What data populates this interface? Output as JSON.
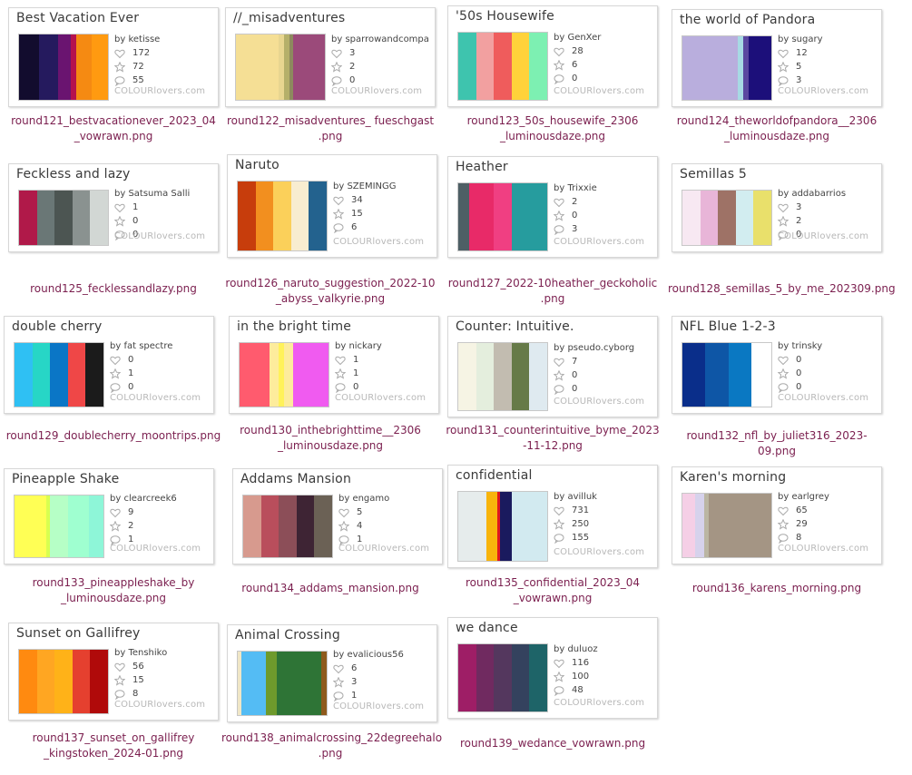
{
  "brand": "COLOURlovers.com",
  "palettes": [
    {
      "title": "Best Vacation Ever",
      "by": "by ketisse",
      "hearts": "172",
      "stars": "72",
      "comments": "55",
      "colors": [
        "#120c2e",
        "#251a5e",
        "#6a1470",
        "#b5124e",
        "#f58a12",
        "#ff9a10"
      ],
      "widths": [
        22,
        22,
        14,
        6,
        18,
        18
      ],
      "filename": [
        "round121_bestvacationever_2023_04",
        "_vowrawn.png"
      ]
    },
    {
      "title": "//_misadventures",
      "by": "by sparrowandcompa",
      "hearts": "3",
      "stars": "2",
      "comments": "0",
      "colors": [
        "#f5df95",
        "#e8d690",
        "#b5b06a",
        "#8d8a5e",
        "#9b4a7a"
      ],
      "widths": [
        48,
        6,
        6,
        4,
        36
      ],
      "filename": [
        "round122_misadventures_ fueschgast",
        ".png"
      ]
    },
    {
      "title": "'50s Housewife",
      "by": "by GenXer",
      "hearts": "28",
      "stars": "6",
      "comments": "0",
      "colors": [
        "#3ec4ae",
        "#f2a0a0",
        "#ef5c5c",
        "#ffd23a",
        "#7df0b2"
      ],
      "widths": [
        20,
        20,
        20,
        20,
        20
      ],
      "filename": [
        "round123_50s_housewife_2306",
        "_luminousdaze.png"
      ]
    },
    {
      "title": "the world of Pandora",
      "by": "by sugary",
      "hearts": "12",
      "stars": "5",
      "comments": "3",
      "colors": [
        "#b9aedd",
        "#a7dae4",
        "#5a48a0",
        "#1c0f7a"
      ],
      "widths": [
        62,
        6,
        6,
        26
      ],
      "filename": [
        "round124_theworldofpandora__2306",
        "_luminousdaze.png"
      ]
    },
    {
      "title": "Feckless and lazy",
      "by": "by Satsuma Salli",
      "hearts": "1",
      "stars": "0",
      "comments": "0",
      "colors": [
        "#b01949",
        "#6a7776",
        "#4c5552",
        "#8a9290",
        "#d2d7d4"
      ],
      "widths": [
        20,
        20,
        20,
        20,
        20
      ],
      "filename": [
        "round125_fecklessandlazy.png"
      ]
    },
    {
      "title": "Naruto",
      "by": "by SZEMINGG",
      "hearts": "34",
      "stars": "15",
      "comments": "6",
      "colors": [
        "#c73d0c",
        "#f28f1f",
        "#fbd05a",
        "#f8edd0",
        "#23628e"
      ],
      "widths": [
        20,
        20,
        20,
        20,
        20
      ],
      "filename": [
        "round126_naruto_suggestion_2022-10",
        "_abyss_valkyrie.png"
      ]
    },
    {
      "title": "Heather",
      "by": "by Trixxie",
      "hearts": "2",
      "stars": "0",
      "comments": "3",
      "colors": [
        "#4e5f65",
        "#e82a68",
        "#f03f82",
        "#269c9e"
      ],
      "widths": [
        12,
        28,
        20,
        40
      ],
      "filename": [
        "round127_2022-10heather_geckoholic",
        ".png"
      ]
    },
    {
      "title": "Semillas 5",
      "by": "by addabarrios",
      "hearts": "3",
      "stars": "2",
      "comments": "0",
      "colors": [
        "#f7e8f2",
        "#e8b5d8",
        "#9e7266",
        "#d2edf0",
        "#e9e06b"
      ],
      "widths": [
        20,
        20,
        20,
        20,
        20
      ],
      "filename": [
        "round128_semillas_5_by_me_202309.png"
      ]
    },
    {
      "title": "double cherry",
      "by": "by fat spectre",
      "hearts": "0",
      "stars": "1",
      "comments": "0",
      "colors": [
        "#2fc0f3",
        "#27d6c6",
        "#0a76c6",
        "#ef4747",
        "#1b1b1b"
      ],
      "widths": [
        20,
        20,
        20,
        20,
        20
      ],
      "filename": [
        "round129_doublecherry_moontrips.png"
      ]
    },
    {
      "title": "in the bright time",
      "by": "by nickary",
      "hearts": "1",
      "stars": "1",
      "comments": "0",
      "colors": [
        "#ff5b6e",
        "#fdec9c",
        "#fff25a",
        "#fdec9c",
        "#f05bf0"
      ],
      "widths": [
        34,
        10,
        6,
        10,
        40
      ],
      "filename": [
        "round130_inthebrighttime__2306",
        "_luminousdaze.png"
      ]
    },
    {
      "title": "Counter: Intuitive.",
      "by": "by pseudo.cyborg",
      "hearts": "7",
      "stars": "0",
      "comments": "0",
      "colors": [
        "#f6f4e4",
        "#e4eedd",
        "#c2bcb0",
        "#667a48",
        "#dfeaf0"
      ],
      "widths": [
        20,
        20,
        20,
        20,
        20
      ],
      "filename": [
        "round131_counterintuitive_byme_2023",
        "-11-12.png"
      ]
    },
    {
      "title": "NFL Blue 1-2-3",
      "by": "by trinsky",
      "hearts": "0",
      "stars": "0",
      "comments": "0",
      "colors": [
        "#0a2e8a",
        "#0e56a6",
        "#0a78c2",
        "#ffffff"
      ],
      "widths": [
        26,
        26,
        26,
        22
      ],
      "filename": [
        "round132_nfl_by_juliet316_2023-09.png"
      ]
    },
    {
      "title": "Pineapple Shake",
      "by": "by clearcreek6",
      "hearts": "9",
      "stars": "2",
      "comments": "1",
      "colors": [
        "#ffff55",
        "#d8ff4f",
        "#b6ffc6",
        "#9fffd0",
        "#8ef6d8"
      ],
      "widths": [
        36,
        4,
        20,
        24,
        16
      ],
      "filename": [
        "round133_pineappleshake_by",
        "_luminousdaze.png"
      ]
    },
    {
      "title": "Addams Mansion",
      "by": "by engamo",
      "hearts": "5",
      "stars": "4",
      "comments": "1",
      "colors": [
        "#d79a8e",
        "#b94e5c",
        "#8c4e58",
        "#3e2434",
        "#6b6155"
      ],
      "widths": [
        20,
        20,
        20,
        20,
        20
      ],
      "filename": [
        "round134_addams_mansion.png"
      ]
    },
    {
      "title": "confidential",
      "by": "by avilluk",
      "hearts": "731",
      "stars": "250",
      "comments": "155",
      "colors": [
        "#e6ecec",
        "#f8b40c",
        "#e0151f",
        "#1a1a5e",
        "#d2eaf0"
      ],
      "widths": [
        32,
        12,
        3,
        13,
        40
      ],
      "filename": [
        "round135_confidential_2023_04",
        "_vowrawn.png"
      ]
    },
    {
      "title": "Karen's morning",
      "by": "by earlgrey",
      "hearts": "65",
      "stars": "29",
      "comments": "8",
      "colors": [
        "#f5cfe6",
        "#d6d2ec",
        "#bbb6a3",
        "#a49584"
      ],
      "widths": [
        14,
        10,
        6,
        70
      ],
      "filename": [
        "round136_karens_morning.png"
      ]
    },
    {
      "title": "Sunset on Gallifrey",
      "by": "by Tenshiko",
      "hearts": "56",
      "stars": "15",
      "comments": "8",
      "colors": [
        "#ff8a10",
        "#ffa622",
        "#ffb218",
        "#e5402f",
        "#b00a0a"
      ],
      "widths": [
        20,
        20,
        20,
        20,
        20
      ],
      "filename": [
        "round137_sunset_on_gallifrey",
        "_kingstoken_2024-01.png"
      ]
    },
    {
      "title": "Animal Crossing",
      "by": "by evalicious56",
      "hearts": "6",
      "stars": "3",
      "comments": "1",
      "colors": [
        "#f0e6c6",
        "#54bcf4",
        "#6e9a2c",
        "#2e7436",
        "#8e5a1c"
      ],
      "widths": [
        4,
        28,
        12,
        50,
        6
      ],
      "filename": [
        "round138_animalcrossing_22degreehalo",
        ".png"
      ]
    },
    {
      "title": "we dance",
      "by": "by duluoz",
      "hearts": "116",
      "stars": "100",
      "comments": "48",
      "colors": [
        "#9e1e66",
        "#702a60",
        "#54375e",
        "#34425e",
        "#1e6468"
      ],
      "widths": [
        20,
        20,
        20,
        20,
        20
      ],
      "filename": [
        "round139_wedance_vowrawn.png"
      ]
    }
  ]
}
